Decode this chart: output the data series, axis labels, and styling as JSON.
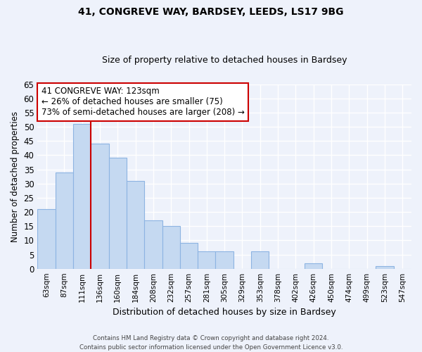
{
  "title1": "41, CONGREVE WAY, BARDSEY, LEEDS, LS17 9BG",
  "title2": "Size of property relative to detached houses in Bardsey",
  "xlabel": "Distribution of detached houses by size in Bardsey",
  "ylabel": "Number of detached properties",
  "bin_labels": [
    "63sqm",
    "87sqm",
    "111sqm",
    "136sqm",
    "160sqm",
    "184sqm",
    "208sqm",
    "232sqm",
    "257sqm",
    "281sqm",
    "305sqm",
    "329sqm",
    "353sqm",
    "378sqm",
    "402sqm",
    "426sqm",
    "450sqm",
    "474sqm",
    "499sqm",
    "523sqm",
    "547sqm"
  ],
  "bar_heights": [
    21,
    34,
    51,
    44,
    39,
    31,
    17,
    15,
    9,
    6,
    6,
    0,
    6,
    0,
    0,
    2,
    0,
    0,
    0,
    1,
    0
  ],
  "bar_color": "#c5d9f1",
  "bar_edge_color": "#8db4e2",
  "vline_x_index": 2.5,
  "vline_color": "#cc0000",
  "ylim": [
    0,
    65
  ],
  "yticks": [
    0,
    5,
    10,
    15,
    20,
    25,
    30,
    35,
    40,
    45,
    50,
    55,
    60,
    65
  ],
  "annotation_title": "41 CONGREVE WAY: 123sqm",
  "annotation_line1": "← 26% of detached houses are smaller (75)",
  "annotation_line2": "73% of semi-detached houses are larger (208) →",
  "annotation_box_color": "#ffffff",
  "annotation_box_edge": "#cc0000",
  "footer1": "Contains HM Land Registry data © Crown copyright and database right 2024.",
  "footer2": "Contains public sector information licensed under the Open Government Licence v3.0.",
  "background_color": "#eef2fb",
  "grid_color": "#ffffff"
}
